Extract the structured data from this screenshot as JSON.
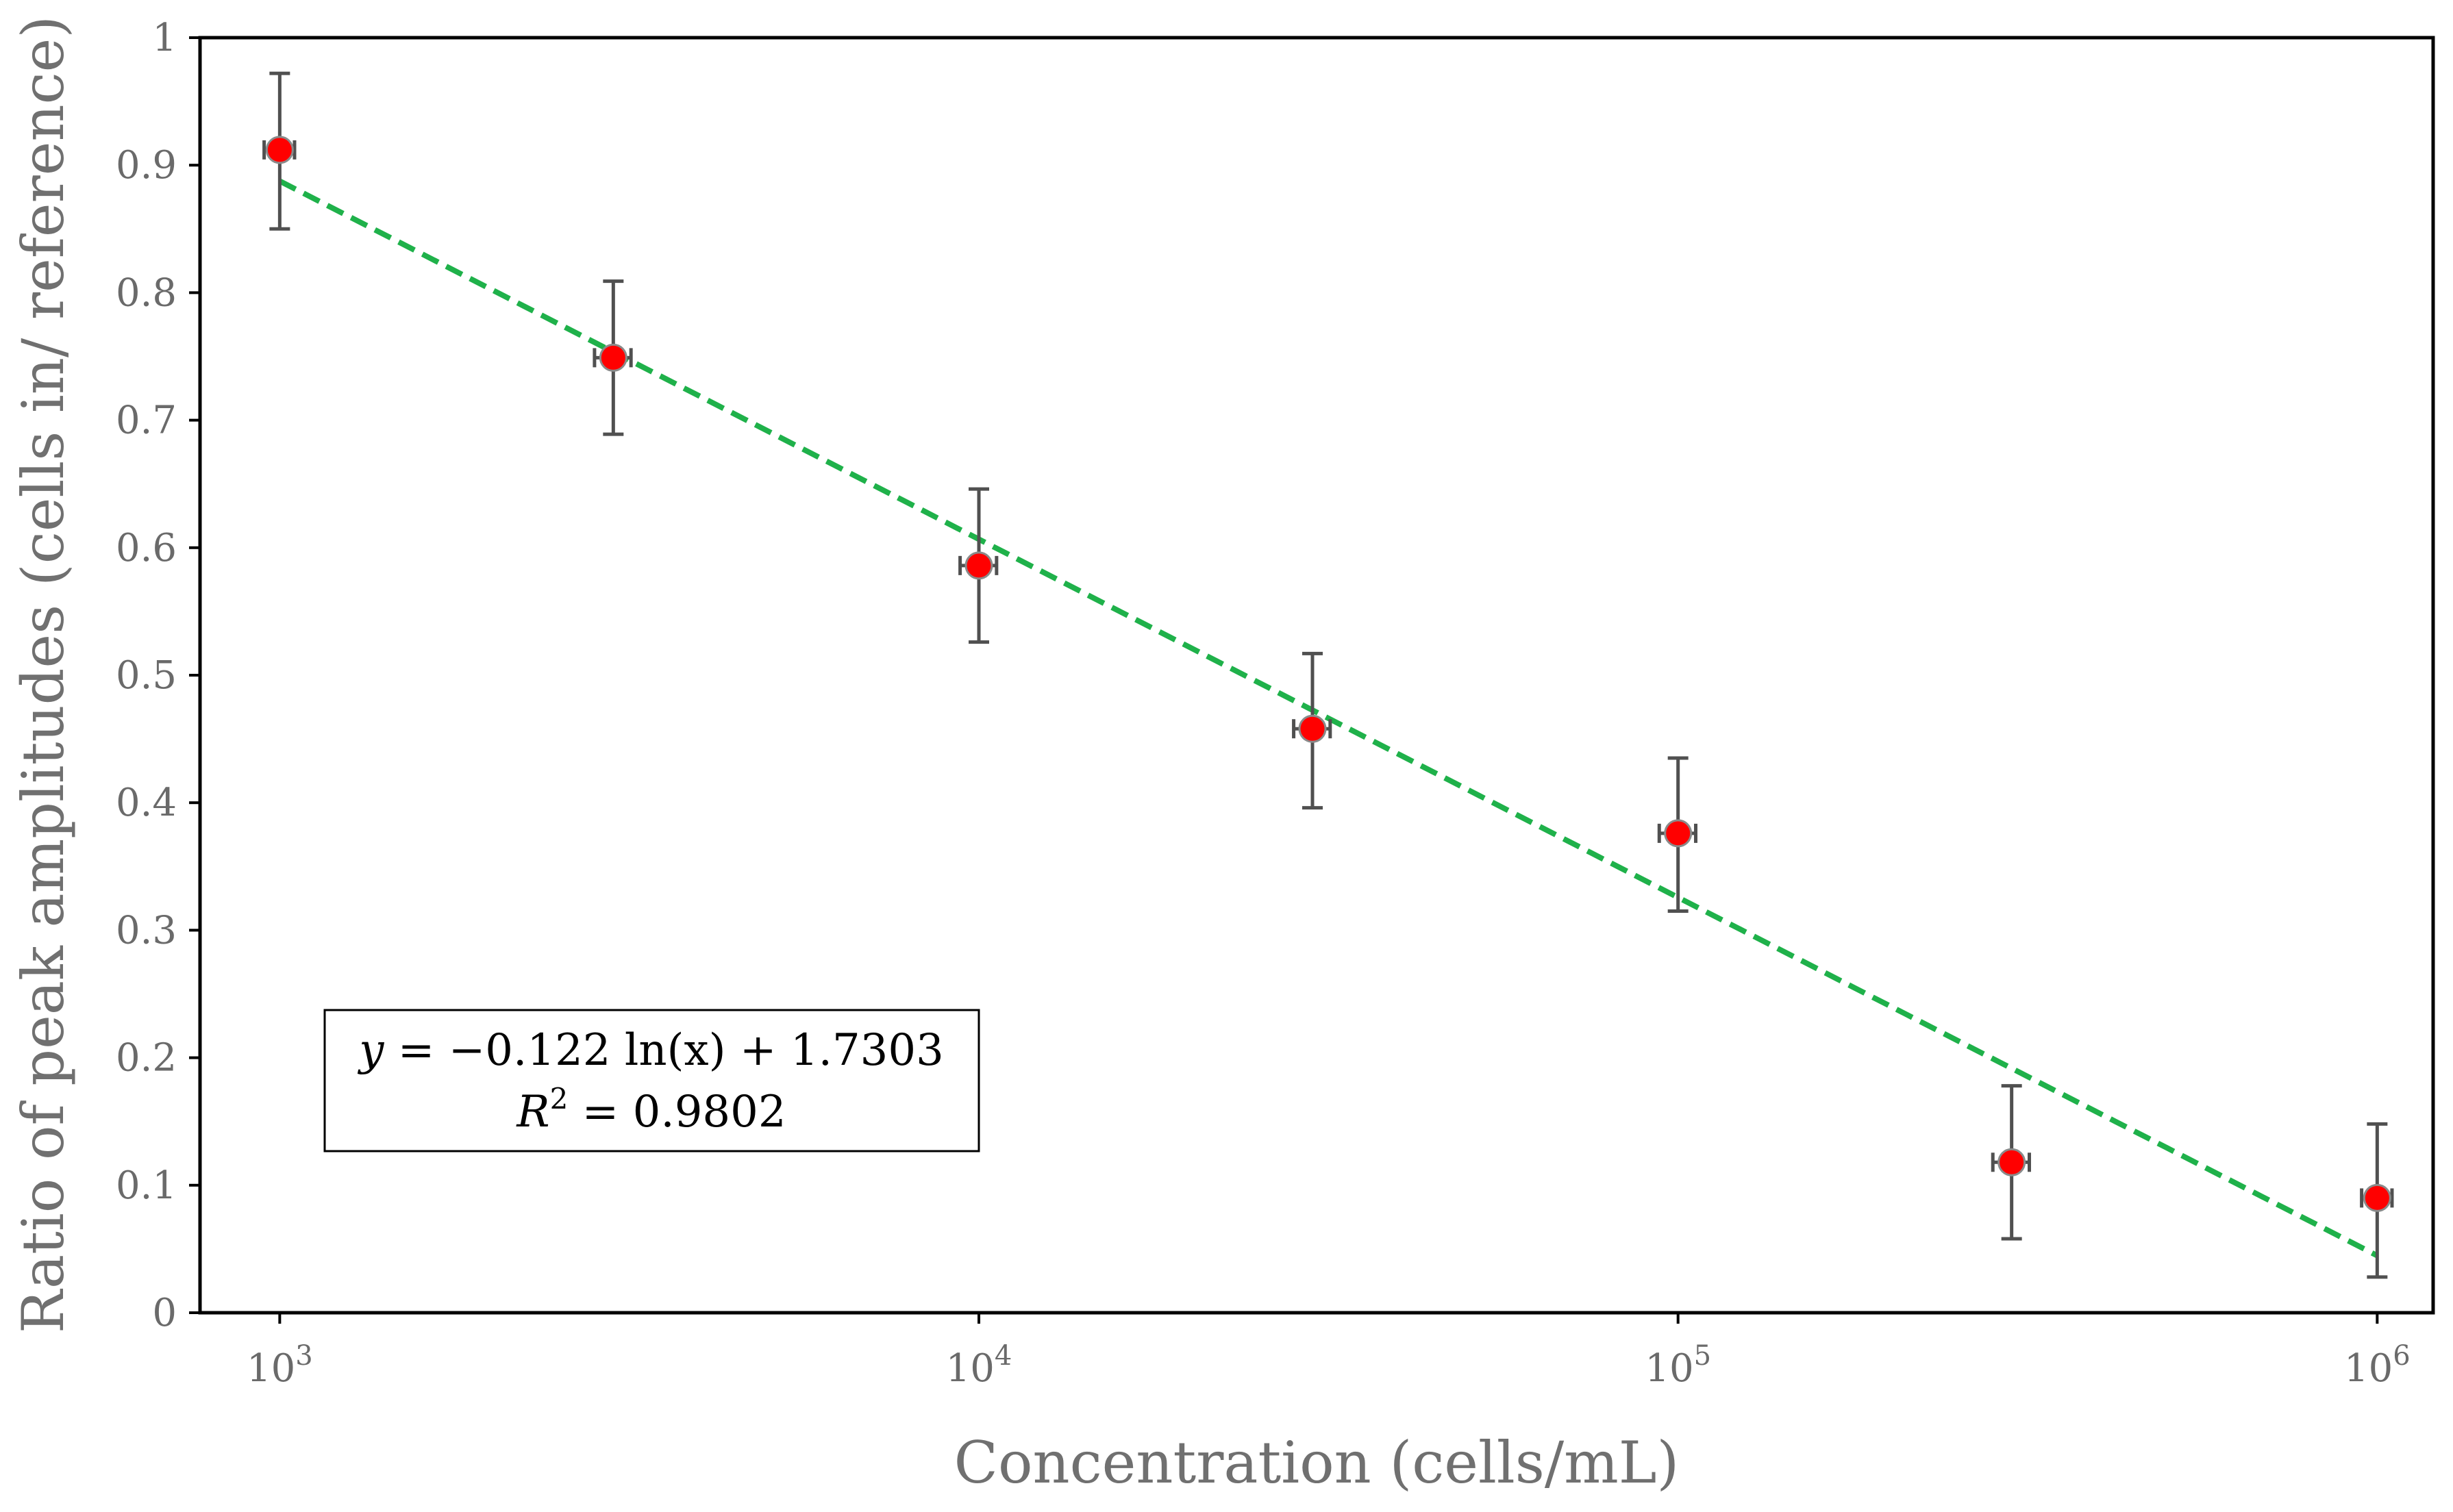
{
  "chart_data": {
    "type": "scatter",
    "xlabel": "Concentration (cells/mL)",
    "ylabel": "Ratio of peak amplitudes (cells in/ reference)",
    "x_scale": "log10",
    "xlim": [
      2.886,
      6.08
    ],
    "ylim": [
      0,
      1
    ],
    "y_ticks": [
      "0",
      "0.1",
      "0.2",
      "0.3",
      "0.4",
      "0.5",
      "0.6",
      "0.7",
      "0.8",
      "0.9",
      "1"
    ],
    "x_ticks": [
      {
        "base": "10",
        "exp": "3",
        "value": 1000
      },
      {
        "base": "10",
        "exp": "4",
        "value": 10000
      },
      {
        "base": "10",
        "exp": "5",
        "value": 100000
      },
      {
        "base": "10",
        "exp": "6",
        "value": 1000000
      }
    ],
    "points": [
      {
        "x": 1000,
        "y": 0.912,
        "y_err_low": 0.85,
        "y_err_high": 0.972,
        "x_err_low": 950,
        "x_err_high": 1050
      },
      {
        "x": 3000,
        "y": 0.749,
        "y_err_low": 0.689,
        "y_err_high": 0.809,
        "x_err_low": 2820,
        "x_err_high": 3180
      },
      {
        "x": 10000,
        "y": 0.586,
        "y_err_low": 0.526,
        "y_err_high": 0.646,
        "x_err_low": 9400,
        "x_err_high": 10600
      },
      {
        "x": 30000,
        "y": 0.458,
        "y_err_low": 0.396,
        "y_err_high": 0.517,
        "x_err_low": 28200,
        "x_err_high": 31800
      },
      {
        "x": 100000,
        "y": 0.376,
        "y_err_low": 0.315,
        "y_err_high": 0.435,
        "x_err_low": 94000,
        "x_err_high": 106000
      },
      {
        "x": 300000,
        "y": 0.118,
        "y_err_low": 0.058,
        "y_err_high": 0.178,
        "x_err_low": 282000,
        "x_err_high": 318000
      },
      {
        "x": 1000000,
        "y": 0.09,
        "y_err_low": 0.028,
        "y_err_high": 0.148,
        "x_err_low": 950000,
        "x_err_high": 1050000
      }
    ],
    "trendline": {
      "type": "logarithmic",
      "a": -0.122,
      "b": 1.7303,
      "x_range": [
        1000,
        1000000
      ],
      "color": "#1fb14a",
      "style": "dashed"
    },
    "annotation": {
      "equation_prefix": "y",
      "equation_body": " = −0.122 ln(x) + 1.7303",
      "r2_prefix": "R",
      "r2_sup": "2",
      "r2_body": " = 0.9802"
    },
    "colors": {
      "marker_fill": "#ff0000",
      "marker_stroke": "#8a8a8a",
      "error_bar": "#505050",
      "axis": "#000000"
    }
  }
}
